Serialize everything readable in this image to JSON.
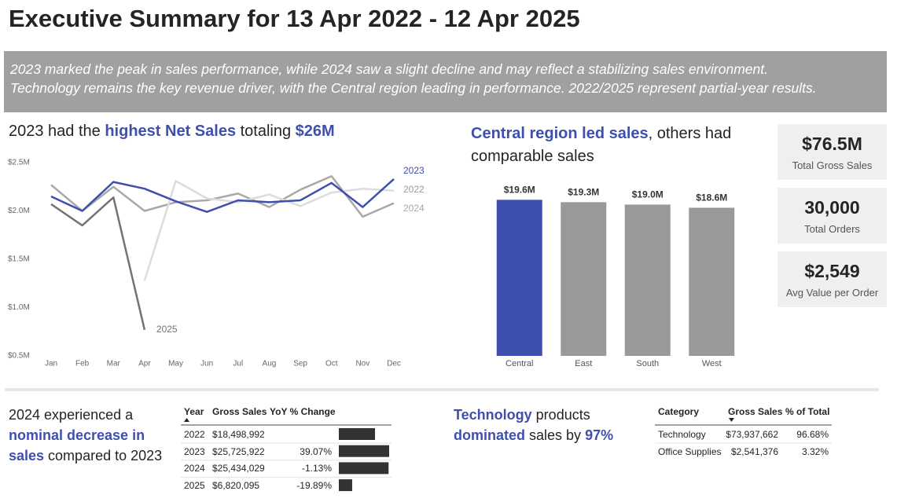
{
  "header": {
    "title": "Executive Summary for 13 Apr 2022 - 12 Apr 2025",
    "summary": [
      "2023 marked the peak in sales performance, while 2024 saw a slight decline and may reflect a stabilizing sales environment.",
      "Technology remains the key revenue driver, with the Central region leading in performance. 2022/2025 represent partial-year results."
    ]
  },
  "chart_data": [
    {
      "type": "line",
      "title_parts": [
        "2023 had the ",
        "highest Net Sales",
        " totaling ",
        "$26M"
      ],
      "categories": [
        "Jan",
        "Feb",
        "Mar",
        "Apr",
        "May",
        "Jun",
        "Jul",
        "Aug",
        "Sep",
        "Oct",
        "Nov",
        "Dec"
      ],
      "series": [
        {
          "name": "2023",
          "color": "#3f4fae",
          "values": [
            2150000,
            2000000,
            2300000,
            2230000,
            2100000,
            1990000,
            2110000,
            2090000,
            2110000,
            2290000,
            2040000,
            2330000
          ]
        },
        {
          "name": "2022",
          "color": "#dcdcdc",
          "values": [
            null,
            null,
            null,
            1280000,
            2310000,
            2130000,
            2090000,
            2170000,
            2050000,
            2190000,
            2230000,
            2210000
          ]
        },
        {
          "name": "2024",
          "color": "#a8a8a8",
          "values": [
            2270000,
            2000000,
            2250000,
            2000000,
            2090000,
            2110000,
            2180000,
            2040000,
            2220000,
            2360000,
            1940000,
            2080000
          ]
        },
        {
          "name": "2025",
          "color": "#737373",
          "values": [
            2070000,
            1850000,
            2140000,
            770000,
            null,
            null,
            null,
            null,
            null,
            null,
            null,
            null
          ]
        }
      ],
      "ylim": [
        500000,
        2500000
      ],
      "yticks": [
        {
          "value": 500000,
          "label": "$0.5M"
        },
        {
          "value": 1000000,
          "label": "$1.0M"
        },
        {
          "value": 1500000,
          "label": "$1.5M"
        },
        {
          "value": 2000000,
          "label": "$2.0M"
        },
        {
          "value": 2500000,
          "label": "$2.5M"
        }
      ],
      "grid": false
    },
    {
      "type": "bar",
      "title_parts": [
        "Central region led sales",
        ", others had comparable sales"
      ],
      "categories": [
        "Central",
        "East",
        "South",
        "West"
      ],
      "values": [
        19600000,
        19300000,
        19000000,
        18600000
      ],
      "value_labels": [
        "$19.6M",
        "$19.3M",
        "$19.0M",
        "$18.6M"
      ],
      "colors": [
        "#3f4fae",
        "#999999",
        "#999999",
        "#999999"
      ],
      "ylim": [
        0,
        22000000
      ]
    }
  ],
  "kpis": [
    {
      "value": "$76.5M",
      "label": "Total Gross Sales"
    },
    {
      "value": "30,000",
      "label": "Total Orders"
    },
    {
      "value": "$2,549",
      "label": "Avg Value per Order"
    }
  ],
  "yoy_panel": {
    "text_parts": [
      "2024 experienced a ",
      "nominal decrease in sales",
      " compared to 2023"
    ],
    "table": {
      "columns": [
        "Year",
        "Gross Sales",
        "YoY % Change"
      ],
      "years": [
        "2022",
        "2023",
        "2024",
        "2025"
      ],
      "values": [
        18498992,
        25725922,
        25434029,
        6820095
      ],
      "value_labels": [
        "$18,498,992",
        "$25,725,922",
        "$25,434,029",
        "$6,820,095"
      ],
      "yoy": [
        null,
        "39.07%",
        "-1.13%",
        "-19.89%"
      ]
    }
  },
  "category_panel": {
    "text_parts": [
      "Technology",
      " products ",
      "dominated",
      " sales by ",
      "97%"
    ],
    "table": {
      "columns": [
        "Category",
        "Gross Sales",
        "% of Total"
      ],
      "rows": [
        [
          "Technology",
          "$73,937,662",
          "96.68%"
        ],
        [
          "Office Supplies",
          "$2,541,376",
          "3.32%"
        ]
      ]
    }
  }
}
